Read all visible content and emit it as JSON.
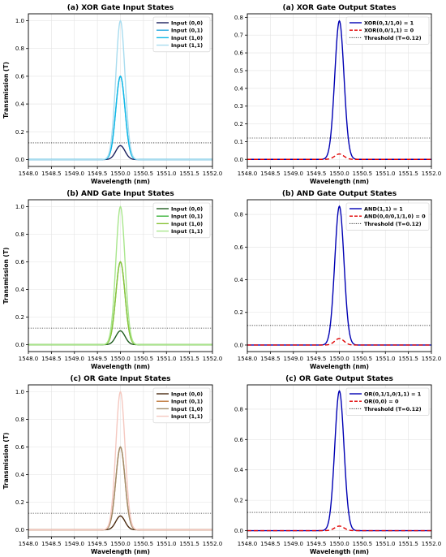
{
  "chart_data": [
    {
      "type": "line",
      "title": "(a) XOR Gate Input States",
      "xlabel": "Wavelength (nm)",
      "ylabel": "Transmission (T)",
      "xlim": [
        1548.0,
        1552.0
      ],
      "ylim": [
        -0.05,
        1.05
      ],
      "xticks": [
        1548.0,
        1548.5,
        1549.0,
        1549.5,
        1550.0,
        1550.5,
        1551.0,
        1551.5,
        1552.0
      ],
      "yticks": [
        0.0,
        0.2,
        0.4,
        0.6,
        0.8,
        1.0
      ],
      "grid": true,
      "legend_position": "top-right",
      "peak_center": 1550.0,
      "peak_sigma": 0.1,
      "series": [
        {
          "name": "Input (0,0)",
          "peak": 0.1,
          "color": "#1a1f5c",
          "dash": "solid"
        },
        {
          "name": "Input (0,1)",
          "peak": 0.6,
          "color": "#29a9e0",
          "dash": "solid"
        },
        {
          "name": "Input (1,0)",
          "peak": 0.6,
          "color": "#0fb8e6",
          "dash": "solid"
        },
        {
          "name": "Input (1,1)",
          "peak": 1.0,
          "color": "#a8dcef",
          "dash": "solid"
        }
      ],
      "threshold": 0.12
    },
    {
      "type": "line",
      "title": "(a) XOR Gate Output States",
      "xlabel": "Wavelength (nm)",
      "ylabel": "",
      "xlim": [
        1548.0,
        1552.0
      ],
      "ylim": [
        -0.04,
        0.82
      ],
      "xticks": [
        1548.0,
        1548.5,
        1549.0,
        1549.5,
        1550.0,
        1550.5,
        1551.0,
        1551.5,
        1552.0
      ],
      "yticks": [
        0.0,
        0.1,
        0.2,
        0.3,
        0.4,
        0.5,
        0.6,
        0.7,
        0.8
      ],
      "grid": true,
      "legend_position": "top-right",
      "peak_center": 1550.0,
      "peak_sigma": 0.1,
      "series": [
        {
          "name": "XOR(0,1/1,0) = 1",
          "peak": 0.78,
          "color": "#0000b3",
          "dash": "solid"
        },
        {
          "name": "XOR(0,0/1,1) = 0",
          "peak": 0.03,
          "color": "#e00000",
          "dash": "dashed"
        },
        {
          "name": "Threshold (T=0.12)",
          "peak": null,
          "color": "#333333",
          "dash": "dotted",
          "value": 0.12
        }
      ]
    },
    {
      "type": "line",
      "title": "(b) AND Gate Input States",
      "xlabel": "Wavelength (nm)",
      "ylabel": "Transmission (T)",
      "xlim": [
        1548.0,
        1552.0
      ],
      "ylim": [
        -0.05,
        1.05
      ],
      "xticks": [
        1548.0,
        1548.5,
        1549.0,
        1549.5,
        1550.0,
        1550.5,
        1551.0,
        1551.5,
        1552.0
      ],
      "yticks": [
        0.0,
        0.2,
        0.4,
        0.6,
        0.8,
        1.0
      ],
      "grid": true,
      "legend_position": "top-right",
      "peak_center": 1550.0,
      "peak_sigma": 0.1,
      "series": [
        {
          "name": "Input (0,0)",
          "peak": 0.1,
          "color": "#1f5c1f",
          "dash": "solid"
        },
        {
          "name": "Input (0,1)",
          "peak": 0.6,
          "color": "#3cb43c",
          "dash": "solid"
        },
        {
          "name": "Input (1,0)",
          "peak": 0.6,
          "color": "#8cc43c",
          "dash": "solid"
        },
        {
          "name": "Input (1,1)",
          "peak": 1.0,
          "color": "#a8e68c",
          "dash": "solid"
        }
      ],
      "threshold": 0.12
    },
    {
      "type": "line",
      "title": "(b) AND Gate Output States",
      "xlabel": "Wavelength (nm)",
      "ylabel": "",
      "xlim": [
        1548.0,
        1552.0
      ],
      "ylim": [
        -0.04,
        0.89
      ],
      "xticks": [
        1548.0,
        1548.5,
        1549.0,
        1549.5,
        1550.0,
        1550.5,
        1551.0,
        1551.5,
        1552.0
      ],
      "yticks": [
        0.0,
        0.2,
        0.4,
        0.6,
        0.8
      ],
      "grid": true,
      "legend_position": "top-right",
      "peak_center": 1550.0,
      "peak_sigma": 0.1,
      "series": [
        {
          "name": "AND(1,1) = 1",
          "peak": 0.85,
          "color": "#0000b3",
          "dash": "solid"
        },
        {
          "name": "AND(0,0/0,1/1,0) = 0",
          "peak": 0.04,
          "color": "#e00000",
          "dash": "dashed"
        },
        {
          "name": "Threshold (T=0.12)",
          "peak": null,
          "color": "#333333",
          "dash": "dotted",
          "value": 0.12
        }
      ]
    },
    {
      "type": "line",
      "title": "(c) OR Gate Input States",
      "xlabel": "Wavelength (nm)",
      "ylabel": "Transmission (T)",
      "xlim": [
        1548.0,
        1552.0
      ],
      "ylim": [
        -0.05,
        1.05
      ],
      "xticks": [
        1548.0,
        1548.5,
        1549.0,
        1549.5,
        1550.0,
        1550.5,
        1551.0,
        1551.5,
        1552.0
      ],
      "yticks": [
        0.0,
        0.2,
        0.4,
        0.6,
        0.8,
        1.0
      ],
      "grid": true,
      "legend_position": "top-right",
      "peak_center": 1550.0,
      "peak_sigma": 0.1,
      "series": [
        {
          "name": "Input (0,0)",
          "peak": 0.1,
          "color": "#4a2a10",
          "dash": "solid"
        },
        {
          "name": "Input (0,1)",
          "peak": 0.6,
          "color": "#c07a3c",
          "dash": "solid"
        },
        {
          "name": "Input (1,0)",
          "peak": 0.6,
          "color": "#a08c6a",
          "dash": "solid"
        },
        {
          "name": "Input (1,1)",
          "peak": 1.0,
          "color": "#f5c8c0",
          "dash": "solid"
        }
      ],
      "threshold": 0.12
    },
    {
      "type": "line",
      "title": "(c) OR Gate Output States",
      "xlabel": "Wavelength (nm)",
      "ylabel": "",
      "xlim": [
        1548.0,
        1552.0
      ],
      "ylim": [
        -0.04,
        0.96
      ],
      "xticks": [
        1548.0,
        1548.5,
        1549.0,
        1549.5,
        1550.0,
        1550.5,
        1551.0,
        1551.5,
        1552.0
      ],
      "yticks": [
        0.0,
        0.2,
        0.4,
        0.6,
        0.8
      ],
      "grid": true,
      "legend_position": "top-right",
      "peak_center": 1550.0,
      "peak_sigma": 0.1,
      "series": [
        {
          "name": "OR(0,1/1,0/1,1) = 1",
          "peak": 0.92,
          "color": "#0000b3",
          "dash": "solid"
        },
        {
          "name": "OR(0,0) = 0",
          "peak": 0.03,
          "color": "#e00000",
          "dash": "dashed"
        },
        {
          "name": "Threshold (T=0.12)",
          "peak": null,
          "color": "#333333",
          "dash": "dotted",
          "value": 0.12
        }
      ]
    }
  ]
}
